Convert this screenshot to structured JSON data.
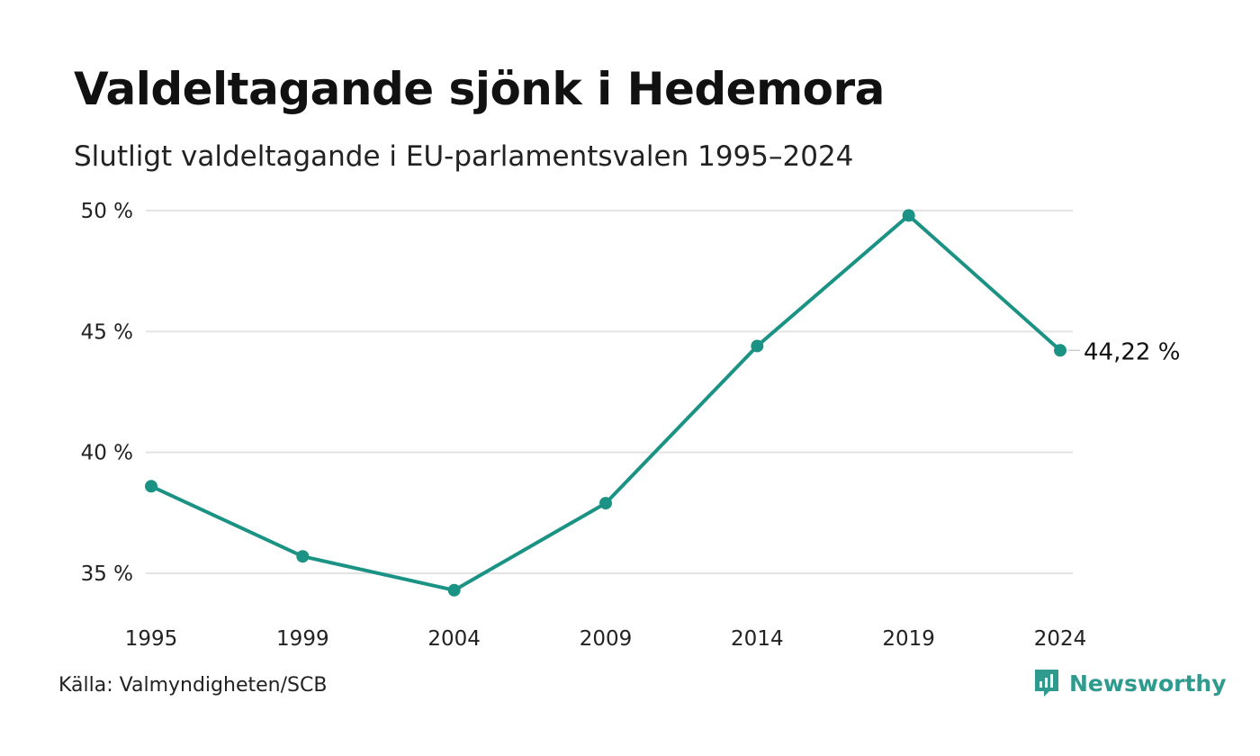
{
  "title": "Valdeltagande sjönk i Hedemora",
  "subtitle": "Slutligt valdeltagande i EU-parlamentsvalen 1995–2024",
  "source": "Källa: Valmyndigheten/SCB",
  "brand": {
    "name": "Newsworthy",
    "icon": "newsworthy-logo-icon",
    "color": "#2f9a8e"
  },
  "chart_data": {
    "type": "line",
    "title": "Valdeltagande sjönk i Hedemora",
    "subtitle": "Slutligt valdeltagande i EU-parlamentsvalen 1995–2024",
    "x": [
      "1995",
      "1999",
      "2004",
      "2009",
      "2014",
      "2019",
      "2024"
    ],
    "series": [
      {
        "values": [
          38.6,
          35.7,
          34.3,
          37.9,
          44.4,
          49.8,
          44.22
        ],
        "color": "#1b9384"
      }
    ],
    "yticks": [
      35,
      40,
      45,
      50
    ],
    "ytick_labels": [
      "35 %",
      "40 %",
      "45 %",
      "50 %"
    ],
    "ylim": [
      35,
      50
    ],
    "grid": true,
    "end_label": "44,22 %",
    "gridline_color": "#e3e3e3"
  }
}
